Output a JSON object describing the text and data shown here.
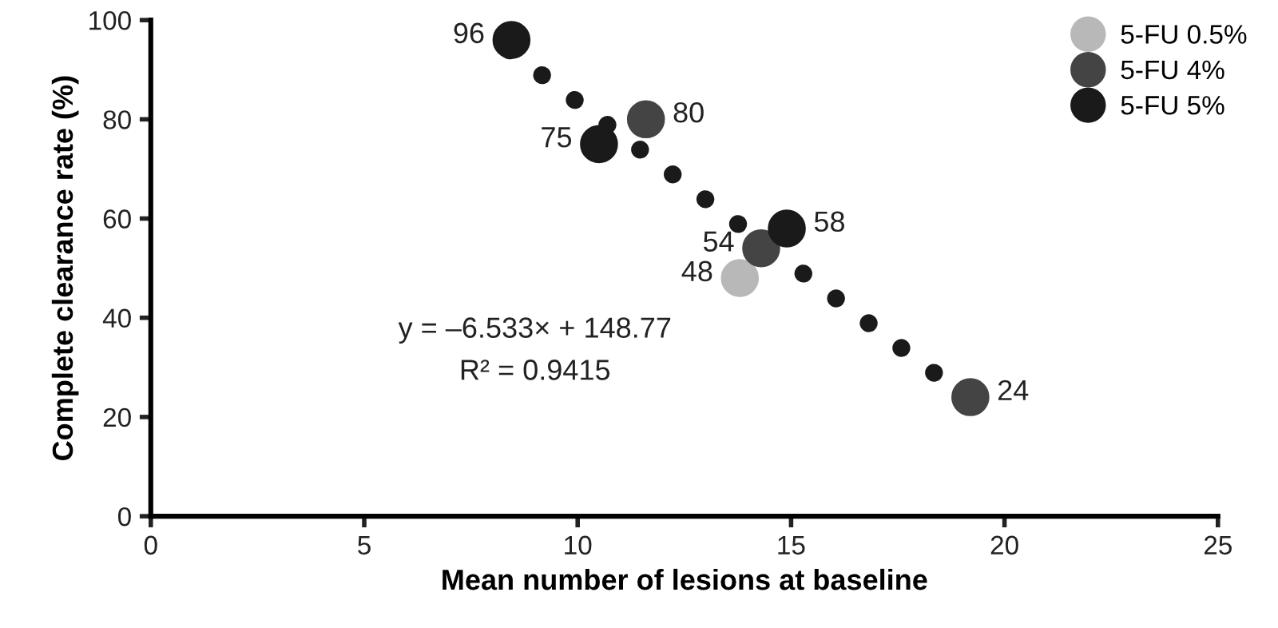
{
  "chart_data": {
    "type": "scatter",
    "xlabel": "Mean number of lesions at baseline",
    "ylabel": "Complete clearance rate (%)",
    "xlim": [
      0,
      25
    ],
    "xticks": [
      0,
      5,
      10,
      15,
      20,
      25
    ],
    "ylim": [
      0,
      100
    ],
    "yticks": [
      0,
      20,
      40,
      60,
      80,
      100
    ],
    "grid": false,
    "legend": "top right",
    "series": [
      {
        "type": "line",
        "line_style": "dotted",
        "color": "#1a1a1a",
        "x": [
          8.4,
          19.1
        ],
        "values": [
          93.9,
          24.0
        ]
      },
      {
        "name": "5-FU 0.5%",
        "marker": "circle",
        "color": "#b8b8b8",
        "x": [
          13.8
        ],
        "values": [
          48
        ],
        "value_labels": [
          "48"
        ]
      },
      {
        "name": "5-FU 4%",
        "marker": "circle",
        "color": "#444444",
        "x": [
          11.6,
          14.3,
          19.2
        ],
        "values": [
          80,
          54,
          24
        ],
        "value_labels": [
          "80",
          "54",
          "24"
        ]
      },
      {
        "name": "5-FU 5%",
        "marker": "circle",
        "color": "#1a1a1a",
        "x": [
          8.45,
          10.5,
          14.9
        ],
        "values": [
          96,
          75,
          58
        ],
        "value_labels": [
          "96",
          "75",
          "58"
        ]
      }
    ],
    "annotations": [
      "y = –6.533× + 148.77",
      "R² = 0.9415"
    ]
  }
}
